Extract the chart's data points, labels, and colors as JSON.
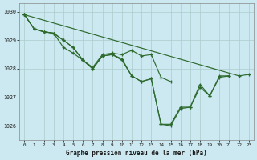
{
  "title": "Graphe pression niveau de la mer (hPa)",
  "bg_color": "#cce8f0",
  "grid_color": "#b8d8e0",
  "line_color": "#2d6a2d",
  "marker_color": "#2d6a2d",
  "xlim": [
    -0.5,
    23.5
  ],
  "ylim": [
    1025.5,
    1030.3
  ],
  "yticks": [
    1026,
    1027,
    1028,
    1029,
    1030
  ],
  "xticks": [
    0,
    1,
    2,
    3,
    4,
    5,
    6,
    7,
    8,
    9,
    10,
    11,
    12,
    13,
    14,
    15,
    16,
    17,
    18,
    19,
    20,
    21,
    22,
    23
  ],
  "series": [
    [
      1029.9,
      1029.4,
      1029.3,
      1029.25,
      1029.0,
      1028.75,
      1028.3,
      1028.0,
      1028.45,
      1028.5,
      1028.3,
      1027.75,
      1027.55,
      1027.65,
      1026.05,
      1026.05,
      1026.65,
      1026.65,
      1027.45,
      1027.05,
      1027.75,
      1027.75,
      null,
      null
    ],
    [
      1029.9,
      1029.4,
      1029.3,
      1029.25,
      1028.75,
      1028.55,
      1028.3,
      1028.05,
      1028.5,
      1028.55,
      1028.5,
      1028.65,
      1028.45,
      1028.5,
      1027.7,
      1027.55,
      null,
      null,
      null,
      null,
      null,
      null,
      null,
      null
    ],
    [
      1029.9,
      null,
      null,
      null,
      null,
      null,
      null,
      null,
      null,
      null,
      null,
      null,
      null,
      null,
      null,
      null,
      null,
      null,
      null,
      null,
      null,
      null,
      1027.75,
      1027.8
    ],
    [
      1029.9,
      1029.4,
      1029.3,
      1029.25,
      1029.0,
      1028.75,
      1028.3,
      1028.0,
      1028.45,
      1028.5,
      1028.35,
      1027.75,
      1027.55,
      1027.65,
      1026.05,
      1026.0,
      1026.6,
      1026.65,
      1027.35,
      1027.05,
      1027.7,
      1027.75,
      null,
      null
    ]
  ]
}
